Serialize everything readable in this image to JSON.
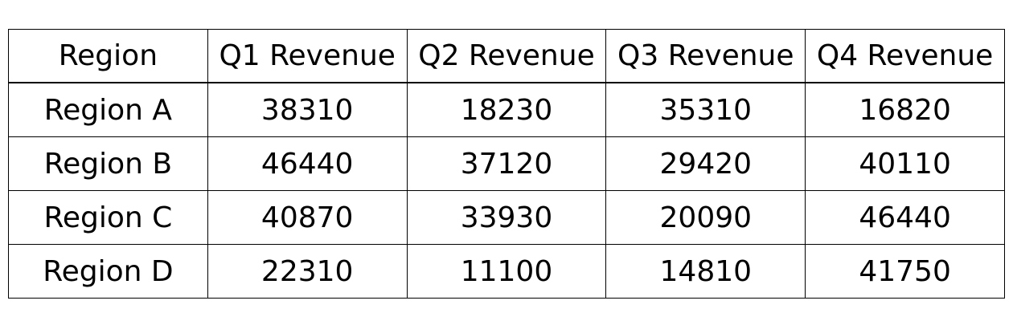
{
  "chart_data": {
    "type": "table",
    "columns": [
      "Region",
      "Q1 Revenue",
      "Q2 Revenue",
      "Q3 Revenue",
      "Q4 Revenue"
    ],
    "rows": [
      [
        "Region A",
        "38310",
        "18230",
        "35310",
        "16820"
      ],
      [
        "Region B",
        "46440",
        "37120",
        "29420",
        "40110"
      ],
      [
        "Region C",
        "40870",
        "33930",
        "20090",
        "46440"
      ],
      [
        "Region D",
        "22310",
        "11100",
        "14810",
        "41750"
      ]
    ]
  }
}
